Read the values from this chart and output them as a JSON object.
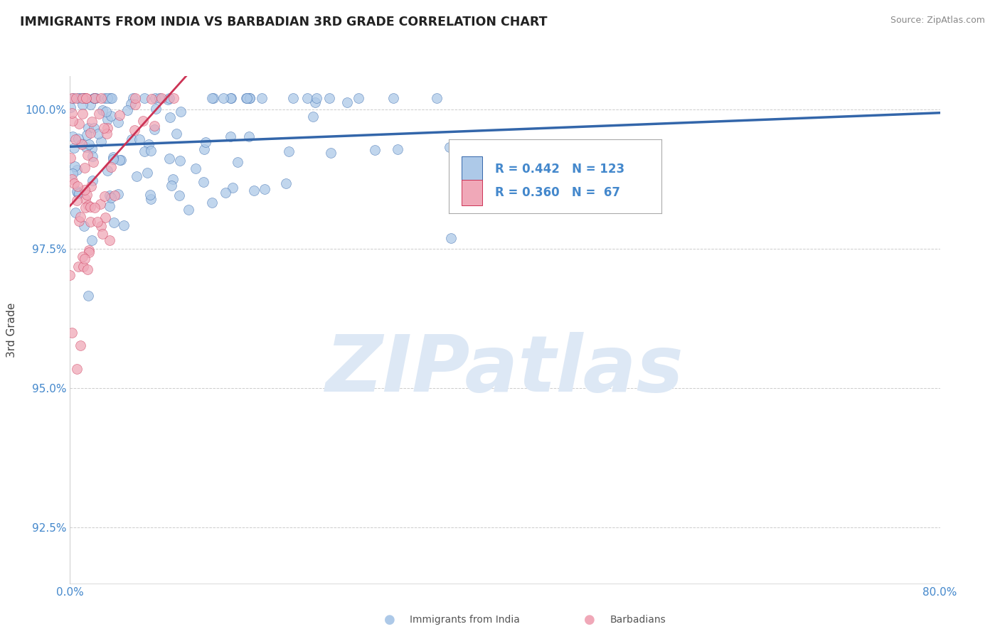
{
  "title": "IMMIGRANTS FROM INDIA VS BARBADIAN 3RD GRADE CORRELATION CHART",
  "source_text": "Source: ZipAtlas.com",
  "ylabel": "3rd Grade",
  "watermark": "ZIPatlas",
  "xlim": [
    0.0,
    80.0
  ],
  "ylim": [
    91.5,
    100.6
  ],
  "yticks": [
    92.5,
    95.0,
    97.5,
    100.0
  ],
  "ytick_labels": [
    "92.5%",
    "95.0%",
    "97.5%",
    "100.0%"
  ],
  "blue_scatter_color": "#adc9e8",
  "pink_scatter_color": "#f0a8b8",
  "blue_line_color": "#3366aa",
  "pink_line_color": "#cc3355",
  "blue_R": 0.442,
  "blue_N": 123,
  "pink_R": 0.36,
  "pink_N": 67,
  "background_color": "#ffffff",
  "grid_color": "#cccccc",
  "title_color": "#222222",
  "axis_label_color": "#444444",
  "tick_color": "#4488cc",
  "watermark_color": "#dde8f5",
  "source_color": "#888888",
  "seed_blue": 42,
  "seed_pink": 7
}
